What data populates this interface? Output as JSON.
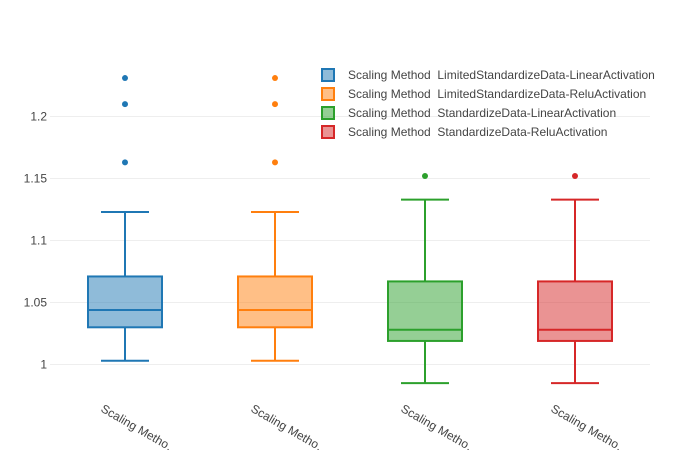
{
  "chart_data": {
    "type": "box",
    "title": "",
    "xlabel": "",
    "ylabel": "",
    "ylim": [
      0.985,
      1.24
    ],
    "yticks": [
      1,
      1.05,
      1.1,
      1.15,
      1.2
    ],
    "ytick_labels": [
      "1",
      "1.05",
      "1.1",
      "1.15",
      "1.2"
    ],
    "grid": true,
    "legend_position": "top-right",
    "categories": [
      "Scaling Metho…",
      "Scaling Metho…",
      "Scaling Metho…",
      "Scaling Metho…"
    ],
    "series": [
      {
        "name": "Scaling Method  LimitedStandardizeData-LinearActivation",
        "color": "#1f77b4",
        "fill": "rgba(31,119,180,0.5)",
        "min": 1.003,
        "q1": 1.03,
        "median": 1.044,
        "q3": 1.071,
        "max": 1.123,
        "outliers": [
          1.163,
          1.21,
          1.231
        ]
      },
      {
        "name": "Scaling Method  LimitedStandardizeData-ReluActivation",
        "color": "#ff7f0e",
        "fill": "rgba(255,127,14,0.5)",
        "min": 1.003,
        "q1": 1.03,
        "median": 1.044,
        "q3": 1.071,
        "max": 1.123,
        "outliers": [
          1.163,
          1.21,
          1.231
        ]
      },
      {
        "name": "Scaling Method  StandardizeData-LinearActivation",
        "color": "#2ca02c",
        "fill": "rgba(44,160,44,0.5)",
        "min": 0.985,
        "q1": 1.019,
        "median": 1.028,
        "q3": 1.067,
        "max": 1.133,
        "outliers": [
          1.152
        ]
      },
      {
        "name": "Scaling Method  StandardizeData-ReluActivation",
        "color": "#d62728",
        "fill": "rgba(214,39,40,0.5)",
        "min": 0.985,
        "q1": 1.019,
        "median": 1.028,
        "q3": 1.067,
        "max": 1.133,
        "outliers": [
          1.152
        ]
      }
    ]
  }
}
